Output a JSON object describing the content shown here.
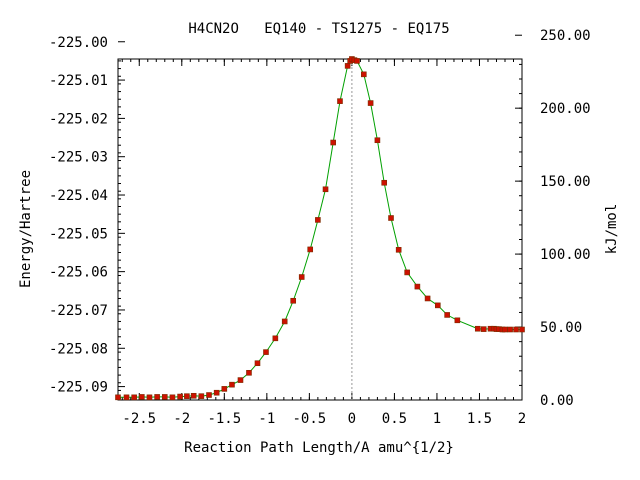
{
  "title": "H4CN2O   EQ140 - TS1275 - EQ175",
  "chart_data": {
    "type": "line",
    "title": "H4CN2O   EQ140 - TS1275 - EQ175",
    "xlabel": "Reaction Path Length/A amu^{1/2}",
    "ylabel": "Energy/Hartree",
    "y2label": "kJ/mol",
    "xlim": [
      -2.75,
      2.0
    ],
    "ylim": [
      -225.0935,
      -225.0045
    ],
    "y2lim": [
      0.0,
      233.7
    ],
    "x_ticks": [
      -2.5,
      -2.0,
      -1.5,
      -1.0,
      -0.5,
      0.0,
      0.5,
      1.0,
      1.5,
      2.0
    ],
    "x_tick_labels": [
      "-2.5",
      "-2",
      "-1.5",
      "-1",
      "-0.5",
      "0",
      "0.5",
      "1",
      "1.5",
      "2"
    ],
    "y_ticks": [
      -225.09,
      -225.08,
      -225.07,
      -225.06,
      -225.05,
      -225.04,
      -225.03,
      -225.02,
      -225.01,
      -225.0
    ],
    "y_tick_labels": [
      "-225.09",
      "-225.08",
      "-225.07",
      "-225.06",
      "-225.05",
      "-225.04",
      "-225.03",
      "-225.02",
      "-225.01",
      "-225.00"
    ],
    "y2_ticks": [
      0,
      50,
      100,
      150,
      200,
      250
    ],
    "y2_tick_labels": [
      "0.00",
      "50.00",
      "100.00",
      "150.00",
      "200.00",
      "250.00"
    ],
    "ts_marker_x": 0.0,
    "grid": false,
    "series": [
      {
        "curve_color": "#00a000",
        "marker_color": "#cc1100",
        "x": [
          -2.75,
          -2.65,
          -2.56,
          -2.47,
          -2.38,
          -2.29,
          -2.2,
          -2.11,
          -2.02,
          -1.94,
          -1.86,
          -1.77,
          -1.68,
          -1.59,
          -1.5,
          -1.41,
          -1.31,
          -1.21,
          -1.11,
          -1.01,
          -0.9,
          -0.79,
          -0.69,
          -0.59,
          -0.49,
          -0.4,
          -0.31,
          -0.22,
          -0.14,
          -0.05,
          -0.02,
          0.0,
          0.03,
          0.06,
          0.14,
          0.22,
          0.3,
          0.38,
          0.46,
          0.55,
          0.65,
          0.77,
          0.89,
          1.01,
          1.12,
          1.24,
          1.48,
          1.55,
          1.63,
          1.67,
          1.7,
          1.73,
          1.77,
          1.8,
          1.86,
          1.93,
          2.0
        ],
        "y": [
          -225.0928,
          -225.0928,
          -225.0928,
          -225.0927,
          -225.0928,
          -225.0927,
          -225.0927,
          -225.0928,
          -225.0926,
          -225.0925,
          -225.0924,
          -225.0925,
          -225.0922,
          -225.0916,
          -225.0906,
          -225.0895,
          -225.0883,
          -225.0864,
          -225.0839,
          -225.081,
          -225.0774,
          -225.073,
          -225.0676,
          -225.0614,
          -225.0542,
          -225.0465,
          -225.0385,
          -225.0263,
          -225.0155,
          -225.0063,
          -225.005,
          -225.0045,
          -225.0048,
          -225.005,
          -225.0085,
          -225.016,
          -225.0257,
          -225.0368,
          -225.046,
          -225.0543,
          -225.0602,
          -225.0639,
          -225.067,
          -225.0688,
          -225.0713,
          -225.0727,
          -225.0749,
          -225.075,
          -225.0749,
          -225.0749,
          -225.075,
          -225.075,
          -225.0751,
          -225.0751,
          -225.0751,
          -225.0751,
          -225.0751
        ]
      }
    ]
  }
}
